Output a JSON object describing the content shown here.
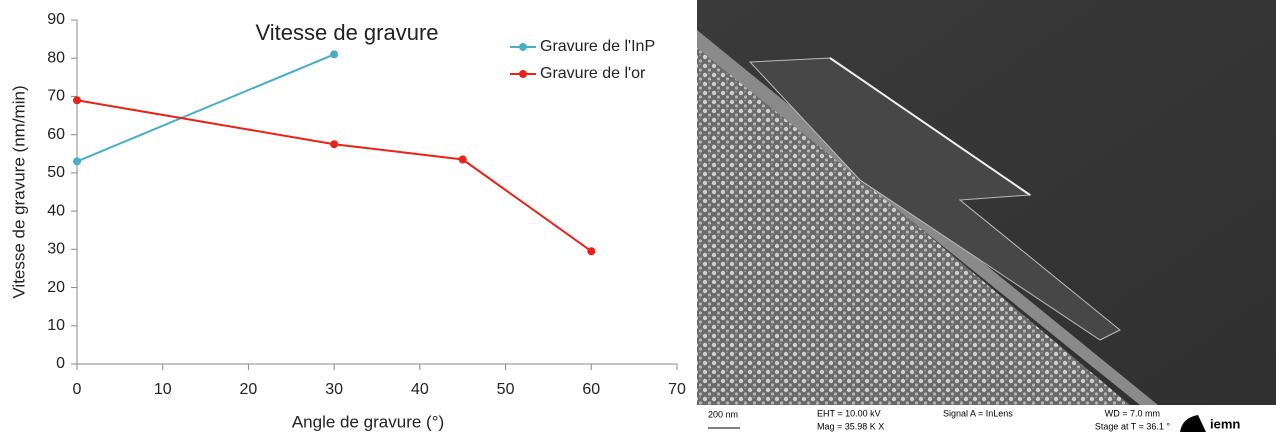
{
  "chart_data": {
    "type": "line",
    "title": "Vitesse de gravure",
    "xlabel": "Angle de gravure (°)",
    "ylabel": "Vitesse de gravure (nm/min)",
    "series": [
      {
        "name": "Gravure de l'InP",
        "color": "#4bacc6",
        "x": [
          0,
          30
        ],
        "values": [
          53,
          81
        ]
      },
      {
        "name": "Gravure de l'or",
        "color": "#e8231a",
        "x": [
          0,
          30,
          45,
          60
        ],
        "values": [
          69,
          57.5,
          53.5,
          29.5
        ]
      }
    ],
    "xlim": [
      0,
      70
    ],
    "xticks": [
      0,
      10,
      20,
      30,
      40,
      50,
      60,
      70
    ],
    "ylim": [
      0,
      90
    ],
    "yticks": [
      0,
      10,
      20,
      30,
      40,
      50,
      60,
      70,
      80,
      90
    ],
    "legend": "upper right",
    "grid": false
  },
  "image": {
    "scale_bar": "200 nm",
    "info": [
      "EHT = 10.00 kV",
      "Mag = 35.98 K X",
      "Signal A = InLens",
      "WD = 7.0 mm",
      "Stage at T = 36.1 °"
    ],
    "logo": "iemn"
  }
}
